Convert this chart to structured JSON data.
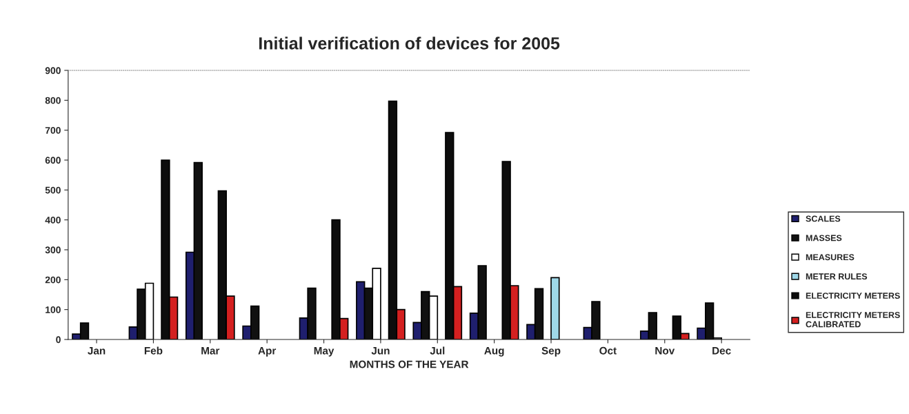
{
  "chart_data": {
    "type": "bar",
    "title": "Initial verification of devices for 2005",
    "xlabel": "MONTHS OF THE YEAR",
    "categories": [
      "Jan",
      "Feb",
      "Mar",
      "Apr",
      "May",
      "Jun",
      "Jul",
      "Aug",
      "Sep",
      "Oct",
      "Nov",
      "Dec"
    ],
    "series": [
      {
        "name": "SCALES",
        "color": "#1f1f6e",
        "values": [
          18,
          42,
          292,
          45,
          72,
          193,
          57,
          88,
          50,
          40,
          28,
          38
        ]
      },
      {
        "name": "MASSES",
        "color": "#111111",
        "values": [
          55,
          168,
          592,
          112,
          172,
          172,
          160,
          247,
          170,
          127,
          90,
          122
        ]
      },
      {
        "name": "MEASURES",
        "color": "#ffffff",
        "values": [
          null,
          188,
          null,
          null,
          null,
          238,
          145,
          null,
          null,
          null,
          null,
          5
        ]
      },
      {
        "name": "METER RULES",
        "color": "#9fd8e8",
        "values": [
          null,
          null,
          null,
          null,
          null,
          null,
          null,
          null,
          207,
          null,
          null,
          null
        ]
      },
      {
        "name": "ELECTRICITY METERS",
        "color": "#0d0d0d",
        "values": [
          null,
          600,
          497,
          null,
          400,
          797,
          692,
          595,
          null,
          null,
          78,
          null
        ]
      },
      {
        "name": "ELECTRICITY METERS\nCALIBRATED",
        "color": "#d42020",
        "values": [
          null,
          142,
          145,
          null,
          70,
          100,
          177,
          180,
          null,
          null,
          20,
          null
        ]
      }
    ],
    "ylim": [
      0,
      900
    ],
    "yticks": [
      0,
      100,
      200,
      300,
      400,
      500,
      600,
      700,
      800,
      900
    ],
    "grid": false,
    "legend": "right"
  }
}
